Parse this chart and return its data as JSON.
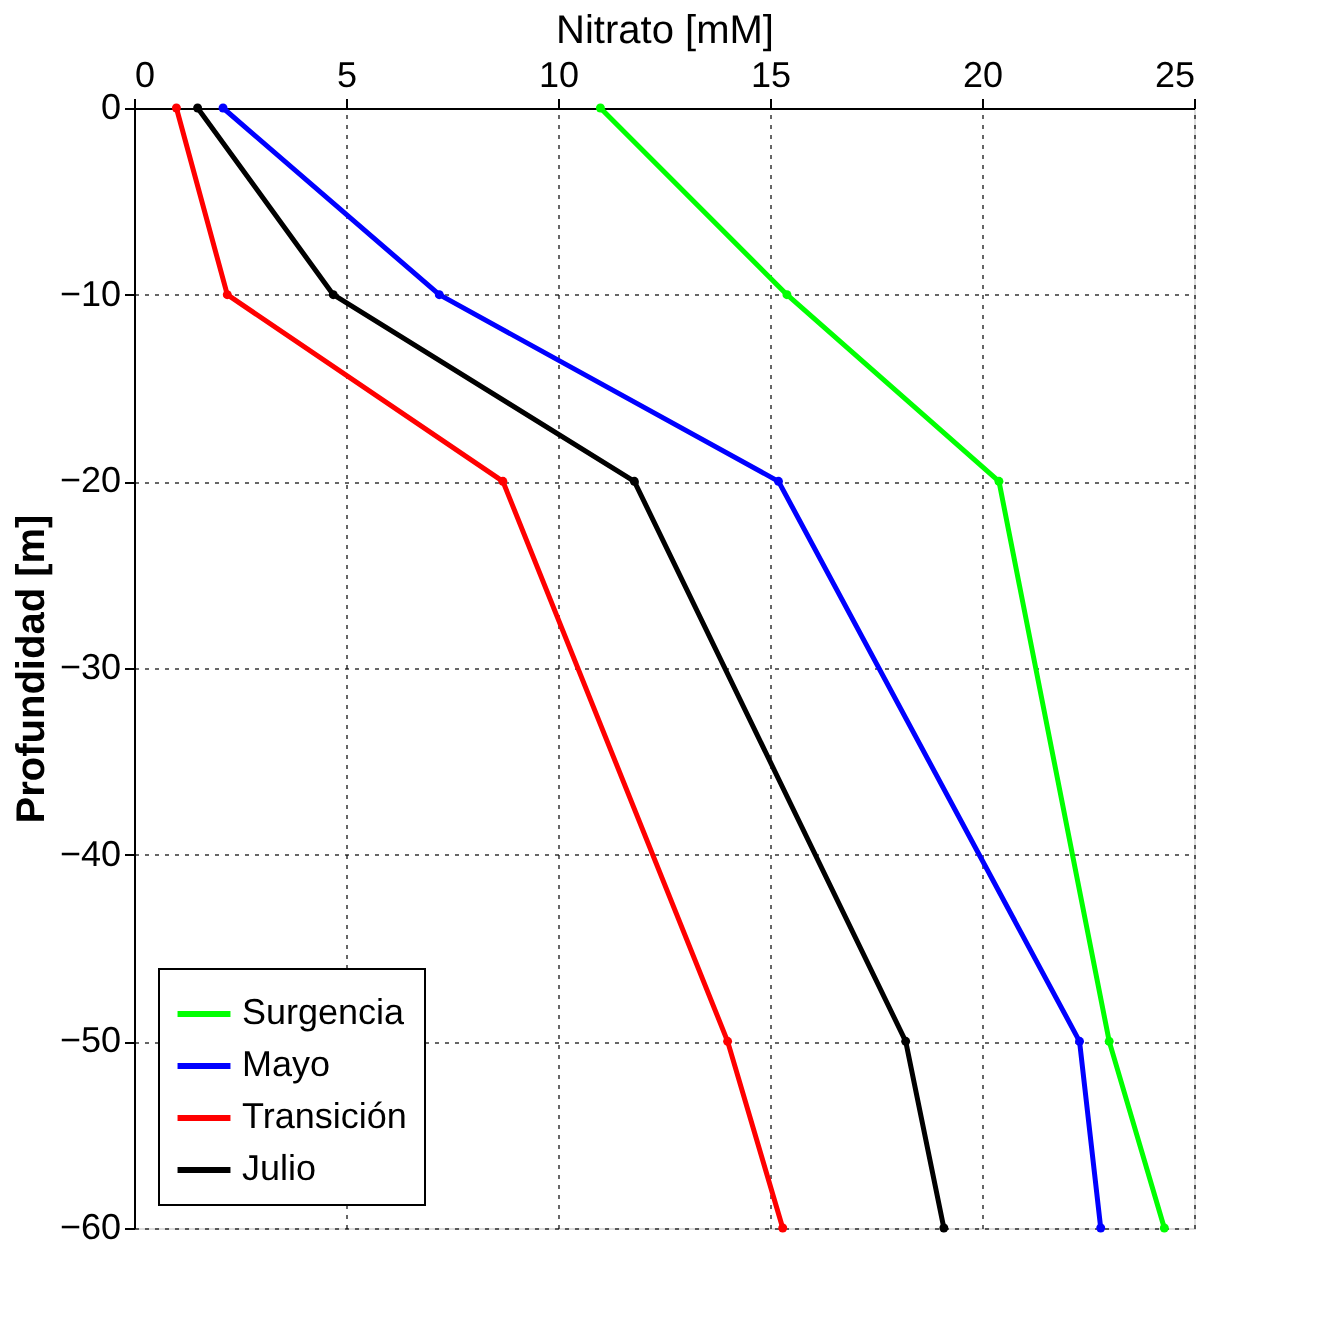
{
  "chart_data": {
    "type": "line",
    "xlabel": "Nitrato [mM]",
    "ylabel": "Profundidad [m]",
    "xlim": [
      0,
      25
    ],
    "xticks": [
      0,
      5,
      10,
      15,
      20,
      25
    ],
    "ylim": [
      -60,
      0
    ],
    "yticks": [
      -60,
      -50,
      -40,
      -30,
      -20,
      -10,
      0
    ],
    "grid": true,
    "legend": "bottom left",
    "marker": "circle",
    "line_style": "solid",
    "series": [
      {
        "name": "Surgencia",
        "color": "#00ff00",
        "x": [
          11.0,
          15.4,
          20.4,
          23.0,
          24.3
        ],
        "values": [
          0,
          -10,
          -20,
          -50,
          -60
        ]
      },
      {
        "name": "Mayo",
        "color": "#0000ff",
        "x": [
          2.1,
          7.2,
          15.2,
          22.3,
          22.8
        ],
        "values": [
          0,
          -10,
          -20,
          -50,
          -60
        ]
      },
      {
        "name": "Transición",
        "color": "#ff0000",
        "x": [
          1.0,
          2.2,
          8.7,
          14.0,
          15.3
        ],
        "values": [
          0,
          -10,
          -20,
          -50,
          -60
        ]
      },
      {
        "name": "Julio",
        "color": "#000000",
        "x": [
          1.5,
          4.7,
          11.8,
          18.2,
          19.1
        ],
        "values": [
          0,
          -10,
          -20,
          -50,
          -60
        ]
      }
    ]
  }
}
